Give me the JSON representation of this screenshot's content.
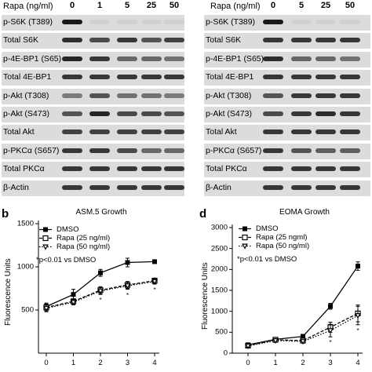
{
  "blots": [
    {
      "header_label": "Rapa (ng/ml)",
      "doses": [
        "0",
        "1",
        "5",
        "25",
        "50"
      ],
      "rows": [
        {
          "label": "p-S6K (T389)",
          "band_intensity": [
            1.0,
            0.05,
            0.05,
            0.05,
            0.05
          ]
        },
        {
          "label": "Total S6K",
          "band_intensity": [
            0.9,
            0.75,
            0.85,
            0.7,
            0.8
          ]
        },
        {
          "label": "p-4E-BP1 (S65)",
          "band_intensity": [
            0.95,
            0.85,
            0.6,
            0.6,
            0.55
          ]
        },
        {
          "label": "Total 4E-BP1",
          "band_intensity": [
            0.85,
            0.85,
            0.85,
            0.85,
            0.85
          ]
        },
        {
          "label": "p-Akt (T308)",
          "band_intensity": [
            0.5,
            0.7,
            0.55,
            0.55,
            0.5
          ]
        },
        {
          "label": "p-Akt (S473)",
          "band_intensity": [
            0.7,
            0.95,
            0.75,
            0.75,
            0.7
          ]
        },
        {
          "label": "Total Akt",
          "band_intensity": [
            0.8,
            0.8,
            0.8,
            0.8,
            0.8
          ]
        },
        {
          "label": "p-PKCα (S657)",
          "band_intensity": [
            0.85,
            0.85,
            0.75,
            0.6,
            0.6
          ]
        },
        {
          "label": "Total PKCα",
          "band_intensity": [
            0.85,
            0.85,
            0.85,
            0.85,
            0.85
          ]
        },
        {
          "label": "β-Actin",
          "band_intensity": [
            0.85,
            0.85,
            0.85,
            0.85,
            0.85
          ]
        }
      ]
    },
    {
      "header_label": "Rapa (ng/ml)",
      "doses": [
        "0",
        "5",
        "25",
        "50"
      ],
      "rows": [
        {
          "label": "p-S6K (T389)",
          "band_intensity": [
            1.0,
            0.05,
            0.05,
            0.05
          ]
        },
        {
          "label": "Total S6K",
          "band_intensity": [
            0.85,
            0.85,
            0.85,
            0.85
          ]
        },
        {
          "label": "p-4E-BP1 (S65)",
          "band_intensity": [
            0.9,
            0.6,
            0.6,
            0.55
          ]
        },
        {
          "label": "Total 4E-BP1",
          "band_intensity": [
            0.85,
            0.85,
            0.85,
            0.85
          ]
        },
        {
          "label": "p-Akt (T308)",
          "band_intensity": [
            0.7,
            0.85,
            0.85,
            0.85
          ]
        },
        {
          "label": "p-Akt (S473)",
          "band_intensity": [
            0.75,
            0.85,
            0.9,
            0.85
          ]
        },
        {
          "label": "Total Akt",
          "band_intensity": [
            0.85,
            0.85,
            0.85,
            0.85
          ]
        },
        {
          "label": "p-PKCα (S657)",
          "band_intensity": [
            0.85,
            0.7,
            0.65,
            0.65
          ]
        },
        {
          "label": "Total PKCα",
          "band_intensity": [
            0.85,
            0.85,
            0.85,
            0.85
          ]
        },
        {
          "label": "β-Actin",
          "band_intensity": [
            0.85,
            0.85,
            0.85,
            0.85
          ]
        }
      ]
    }
  ],
  "chart_data": [
    {
      "type": "line",
      "panel_letter": "b",
      "title": "ASM.5 Growth",
      "ylabel": "Fluorescence Units",
      "xlabel": "",
      "x": [
        0,
        1,
        2,
        3,
        4
      ],
      "x_ticks": [
        "0",
        "1",
        "2",
        "3",
        "4"
      ],
      "ylim": [
        0,
        1500
      ],
      "y_ticks": [
        "500",
        "1000",
        "1500"
      ],
      "grid": false,
      "legend_position": "top-left",
      "annotation": "*p<0.01 vs DMSO",
      "series": [
        {
          "name": "DMSO",
          "marker": "filled-square",
          "line": "solid",
          "values": [
            540,
            680,
            930,
            1050,
            1060
          ],
          "errors": [
            40,
            60,
            40,
            50,
            10
          ]
        },
        {
          "name": "Rapa (25 ng/ml)",
          "marker": "open-square",
          "line": "dashed",
          "values": [
            530,
            600,
            730,
            790,
            840
          ],
          "errors": [
            40,
            30,
            40,
            40,
            30
          ]
        },
        {
          "name": "Rapa (50 ng/ml)",
          "marker": "open-triangle",
          "line": "dotted",
          "values": [
            520,
            590,
            720,
            780,
            830
          ],
          "errors": [
            40,
            30,
            40,
            40,
            30
          ]
        }
      ],
      "significance_markers": [
        {
          "x": 2,
          "label": "*"
        },
        {
          "x": 3,
          "label": "*"
        },
        {
          "x": 4,
          "label": "*"
        }
      ]
    },
    {
      "type": "line",
      "panel_letter": "d",
      "title": "EOMA Growth",
      "ylabel": "Fluorescence Units",
      "xlabel": "",
      "x": [
        0,
        1,
        2,
        3,
        4
      ],
      "x_ticks": [
        "0",
        "1",
        "2",
        "3",
        "4"
      ],
      "ylim": [
        0,
        3000
      ],
      "y_ticks": [
        "0",
        "500",
        "1000",
        "1500",
        "2000",
        "2500",
        "3000"
      ],
      "grid": false,
      "legend_position": "top-left",
      "annotation": "*p<0.01 vs DMSO",
      "series": [
        {
          "name": "DMSO",
          "marker": "filled-square",
          "line": "solid",
          "values": [
            200,
            330,
            400,
            1120,
            2080
          ],
          "errors": [
            30,
            40,
            50,
            70,
            100
          ]
        },
        {
          "name": "Rapa (25 ngml)",
          "marker": "open-square",
          "line": "dashed",
          "values": [
            180,
            320,
            300,
            620,
            950
          ],
          "errors": [
            30,
            40,
            40,
            120,
            200
          ]
        },
        {
          "name": "Rapa (50 ng/ml)",
          "marker": "open-triangle",
          "line": "dotted",
          "values": [
            170,
            300,
            280,
            540,
            900
          ],
          "errors": [
            30,
            40,
            40,
            150,
            220
          ]
        }
      ],
      "significance_markers": [
        {
          "x": 3,
          "label": "*"
        },
        {
          "x": 4,
          "label": "*"
        }
      ]
    }
  ]
}
